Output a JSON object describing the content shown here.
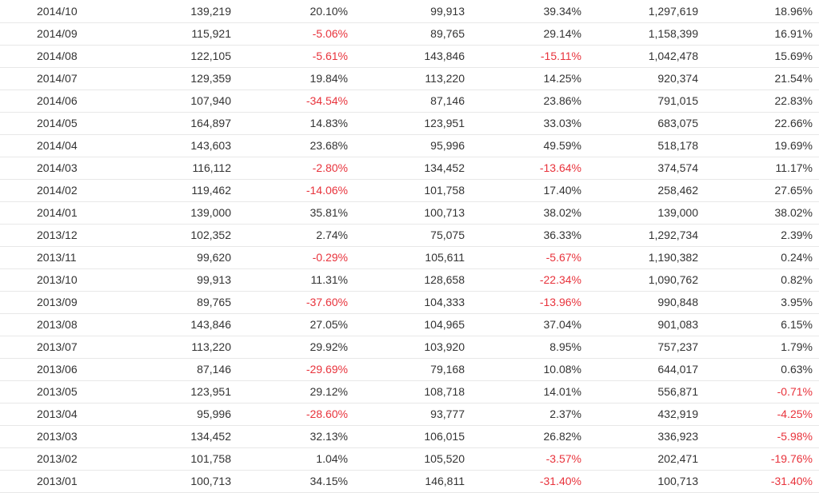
{
  "colors": {
    "text": "#333333",
    "negative": "#e8333c",
    "row_border": "#e8e8e8"
  },
  "rows": [
    [
      "2014/10",
      "139,219",
      "20.10%",
      "99,913",
      "39.34%",
      "1,297,619",
      "18.96%"
    ],
    [
      "2014/09",
      "115,921",
      "-5.06%",
      "89,765",
      "29.14%",
      "1,158,399",
      "16.91%"
    ],
    [
      "2014/08",
      "122,105",
      "-5.61%",
      "143,846",
      "-15.11%",
      "1,042,478",
      "15.69%"
    ],
    [
      "2014/07",
      "129,359",
      "19.84%",
      "113,220",
      "14.25%",
      "920,374",
      "21.54%"
    ],
    [
      "2014/06",
      "107,940",
      "-34.54%",
      "87,146",
      "23.86%",
      "791,015",
      "22.83%"
    ],
    [
      "2014/05",
      "164,897",
      "14.83%",
      "123,951",
      "33.03%",
      "683,075",
      "22.66%"
    ],
    [
      "2014/04",
      "143,603",
      "23.68%",
      "95,996",
      "49.59%",
      "518,178",
      "19.69%"
    ],
    [
      "2014/03",
      "116,112",
      "-2.80%",
      "134,452",
      "-13.64%",
      "374,574",
      "11.17%"
    ],
    [
      "2014/02",
      "119,462",
      "-14.06%",
      "101,758",
      "17.40%",
      "258,462",
      "27.65%"
    ],
    [
      "2014/01",
      "139,000",
      "35.81%",
      "100,713",
      "38.02%",
      "139,000",
      "38.02%"
    ],
    [
      "2013/12",
      "102,352",
      "2.74%",
      "75,075",
      "36.33%",
      "1,292,734",
      "2.39%"
    ],
    [
      "2013/11",
      "99,620",
      "-0.29%",
      "105,611",
      "-5.67%",
      "1,190,382",
      "0.24%"
    ],
    [
      "2013/10",
      "99,913",
      "11.31%",
      "128,658",
      "-22.34%",
      "1,090,762",
      "0.82%"
    ],
    [
      "2013/09",
      "89,765",
      "-37.60%",
      "104,333",
      "-13.96%",
      "990,848",
      "3.95%"
    ],
    [
      "2013/08",
      "143,846",
      "27.05%",
      "104,965",
      "37.04%",
      "901,083",
      "6.15%"
    ],
    [
      "2013/07",
      "113,220",
      "29.92%",
      "103,920",
      "8.95%",
      "757,237",
      "1.79%"
    ],
    [
      "2013/06",
      "87,146",
      "-29.69%",
      "79,168",
      "10.08%",
      "644,017",
      "0.63%"
    ],
    [
      "2013/05",
      "123,951",
      "29.12%",
      "108,718",
      "14.01%",
      "556,871",
      "-0.71%"
    ],
    [
      "2013/04",
      "95,996",
      "-28.60%",
      "93,777",
      "2.37%",
      "432,919",
      "-4.25%"
    ],
    [
      "2013/03",
      "134,452",
      "32.13%",
      "106,015",
      "26.82%",
      "336,923",
      "-5.98%"
    ],
    [
      "2013/02",
      "101,758",
      "1.04%",
      "105,520",
      "-3.57%",
      "202,471",
      "-19.76%"
    ],
    [
      "2013/01",
      "100,713",
      "34.15%",
      "146,811",
      "-31.40%",
      "100,713",
      "-31.40%"
    ]
  ]
}
